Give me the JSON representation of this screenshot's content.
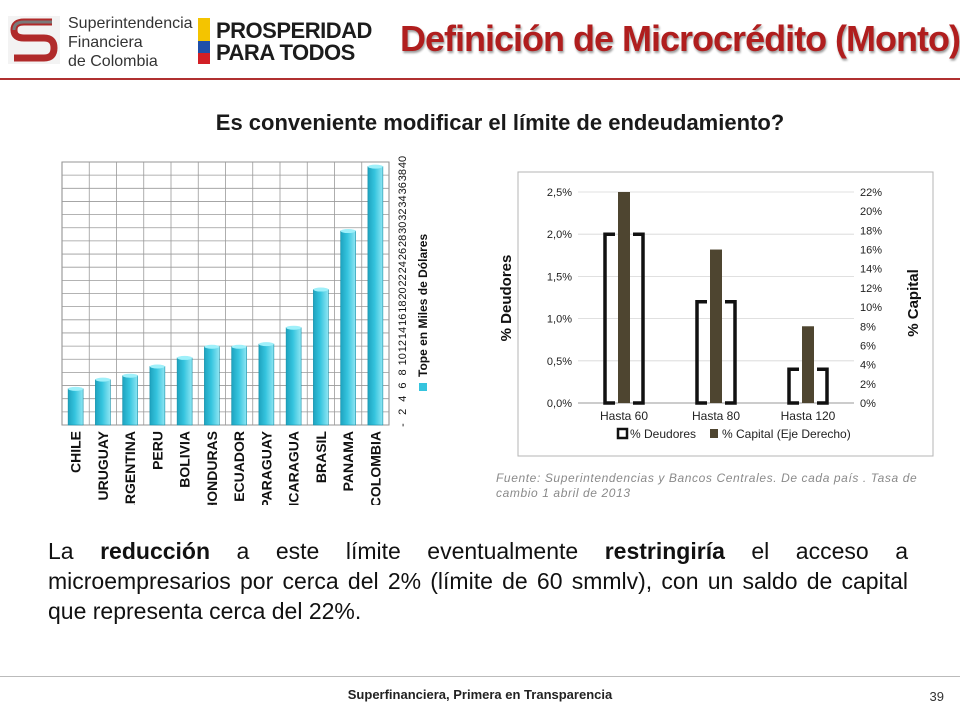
{
  "header": {
    "org_logo_lines": [
      "Superintendencia",
      "Financiera",
      "de Colombia"
    ],
    "campaign_logo_lines": [
      "PROSPERIDAD",
      "PARA TODOS"
    ],
    "title": "Definición de Microcrédito (Monto)"
  },
  "question": "Es conveniente modificar el límite de endeudamiento?",
  "colors": {
    "title": "#b01e1e",
    "bar_cyan": "#35c4de",
    "bar_dark": "#4e4530",
    "rule": "#b03030"
  },
  "chart_data": [
    {
      "type": "bar",
      "categories": [
        "CHILE",
        "URUGUAY",
        "ARGENTINA",
        "PERU",
        "BOLIVIA",
        "HONDURAS",
        "ECUADOR",
        "PARAGUAY",
        "NICARAGUA",
        "BRASIL",
        "PANAMA",
        "COLOMBIA"
      ],
      "values": [
        5.5,
        6.9,
        7.5,
        8.9,
        10.2,
        11.9,
        11.9,
        12.3,
        14.8,
        20.6,
        29.5,
        39.3
      ],
      "ylabel": "Tope en Miles de Dólares",
      "ylim": [
        0,
        40
      ],
      "yticks": [
        0,
        2,
        4,
        6,
        8,
        10,
        12,
        14,
        16,
        18,
        20,
        22,
        24,
        26,
        28,
        30,
        32,
        34,
        36,
        38,
        40
      ],
      "ytick_labels": [
        "-",
        "2",
        "4",
        "6",
        "8",
        "10",
        "12",
        "14",
        "16",
        "18",
        "20",
        "22",
        "24",
        "26",
        "28",
        "30",
        "32",
        "34",
        "36",
        "38",
        "40"
      ],
      "grid": true,
      "legend": "right"
    },
    {
      "type": "bar",
      "categories": [
        "Hasta 60",
        "Hasta 80",
        "Hasta 120"
      ],
      "series": [
        {
          "name": "% Deudores",
          "axis": "left",
          "values": [
            2.0,
            1.2,
            0.4
          ]
        },
        {
          "name": "% Capital (Eje Derecho)",
          "axis": "right",
          "values": [
            22,
            16,
            8
          ]
        }
      ],
      "ylabel": "% Deudores",
      "y2label": "% Capital",
      "ylim": [
        0,
        2.5
      ],
      "y2lim": [
        0,
        22
      ],
      "yticks": [
        "0,0%",
        "0,5%",
        "1,0%",
        "1,5%",
        "2,0%",
        "2,5%"
      ],
      "y2ticks": [
        "0%",
        "2%",
        "4%",
        "6%",
        "8%",
        "10%",
        "12%",
        "14%",
        "16%",
        "18%",
        "20%",
        "22%"
      ],
      "legend": "bottom"
    }
  ],
  "source": "Fuente: Superintendencias y Bancos Centrales. De cada país . Tasa de cambio 1 abril de 2013",
  "body": {
    "t1": "La ",
    "b1": "reducción",
    "t2": " a este límite eventualmente ",
    "b2": "restringiría",
    "t3": " el acceso a microempresarios por cerca del 2% (límite de 60 smmlv), con un saldo de capital que representa cerca del 22%."
  },
  "footer": {
    "text": "Superfinanciera, Primera en Transparencia",
    "page": "39"
  }
}
